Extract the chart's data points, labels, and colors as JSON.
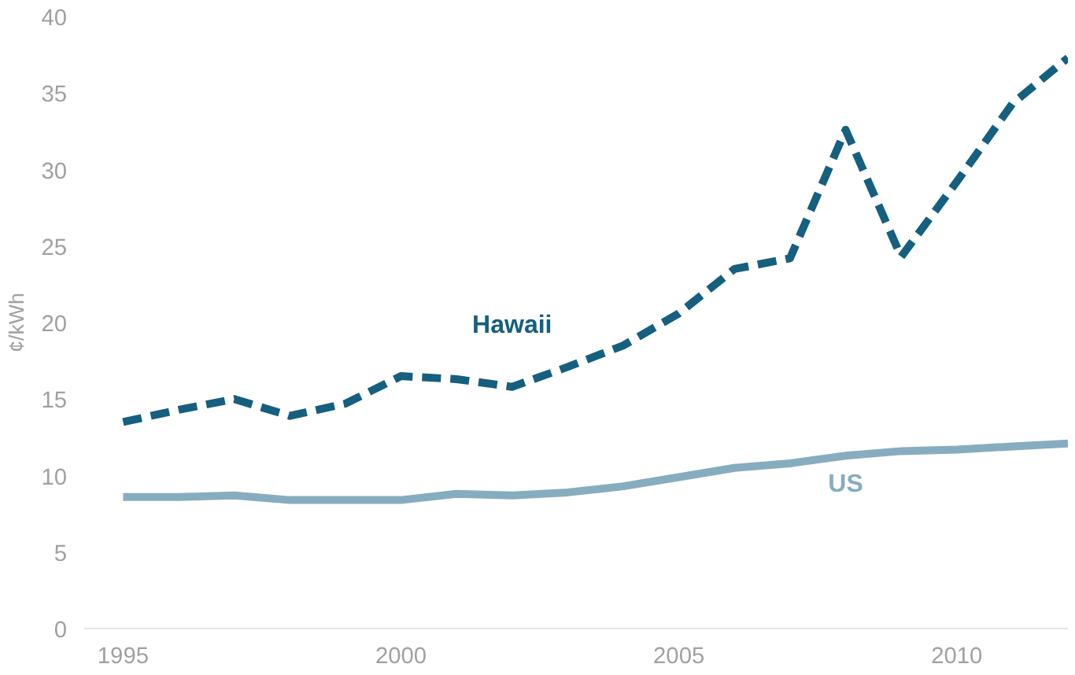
{
  "chart_data": {
    "type": "line",
    "ylabel": "¢/kWh",
    "x": [
      1995,
      1996,
      1997,
      1998,
      1999,
      2000,
      2001,
      2002,
      2003,
      2004,
      2005,
      2006,
      2007,
      2008,
      2009,
      2010,
      2011,
      2012
    ],
    "xlim": [
      1994.3,
      2012
    ],
    "ylim": [
      0,
      40
    ],
    "xticks": [
      1995,
      2000,
      2005,
      2010
    ],
    "yticks": [
      0,
      5,
      10,
      15,
      20,
      25,
      30,
      35,
      40
    ],
    "grid": false,
    "series": [
      {
        "name": "Hawaii",
        "color": "#155f7f",
        "line_style": "dashed",
        "values": [
          13.5,
          14.3,
          15.0,
          13.9,
          14.7,
          16.5,
          16.3,
          15.8,
          17.1,
          18.5,
          20.6,
          23.5,
          24.2,
          32.6,
          24.3,
          29.2,
          34.3,
          37.3
        ]
      },
      {
        "name": "US",
        "color": "#86adbf",
        "line_style": "solid",
        "values": [
          8.6,
          8.6,
          8.7,
          8.4,
          8.4,
          8.4,
          8.8,
          8.7,
          8.9,
          9.3,
          9.9,
          10.5,
          10.8,
          11.3,
          11.6,
          11.7,
          11.9,
          12.1
        ]
      }
    ]
  }
}
